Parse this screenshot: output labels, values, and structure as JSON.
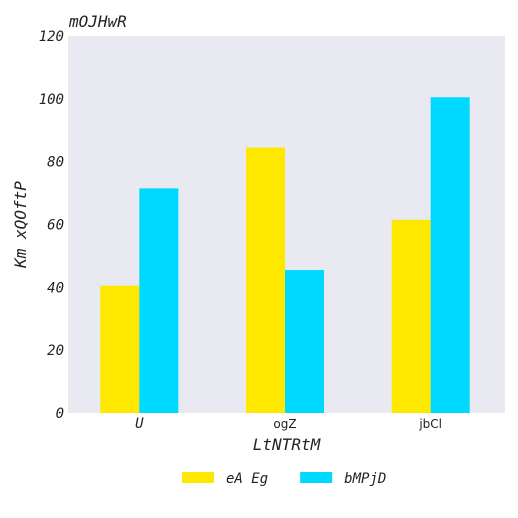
{
  "chart_data": {
    "type": "bar",
    "title": "mOJHwR",
    "xlabel": "LtNTRtM",
    "ylabel": "Km xQOftP",
    "categories": [
      "U",
      "ogZ",
      "jbCl"
    ],
    "series": [
      {
        "name": "eA Eg",
        "values": [
          40.5,
          84.5,
          61.5
        ],
        "color": "#ffe800"
      },
      {
        "name": "bMPjD",
        "values": [
          71.5,
          45.5,
          100.5
        ],
        "color": "#00d9ff"
      }
    ],
    "ylim": [
      0,
      120
    ],
    "yticks": [
      0,
      20,
      40,
      60,
      80,
      100,
      120
    ],
    "grid": false,
    "background": "#e9e9f1",
    "legend_position": "bottom-center"
  }
}
